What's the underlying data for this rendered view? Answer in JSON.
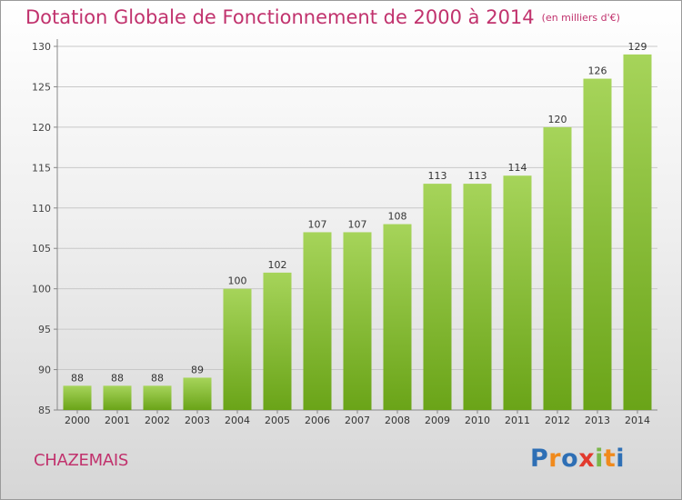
{
  "chart_data": {
    "type": "bar",
    "title": "Dotation Globale de Fonctionnement de 2000 à 2014",
    "subtitle": "(en milliers d'€)",
    "categories": [
      "2000",
      "2001",
      "2002",
      "2003",
      "2004",
      "2005",
      "2006",
      "2007",
      "2008",
      "2009",
      "2010",
      "2011",
      "2012",
      "2013",
      "2014"
    ],
    "values": [
      88,
      88,
      88,
      89,
      100,
      102,
      107,
      107,
      108,
      113,
      113,
      114,
      120,
      126,
      129
    ],
    "ylim": [
      85,
      130
    ],
    "yticks": [
      85,
      90,
      95,
      100,
      105,
      110,
      115,
      120,
      125,
      130
    ],
    "grid": true,
    "xlabel": "",
    "ylabel": ""
  },
  "footer": {
    "town": "CHAZEMAIS",
    "logo": "Proxiti"
  },
  "colors": {
    "title": "#c1326d",
    "bar_light": "#a6d45a",
    "bar_dark": "#6aa418",
    "grid": "#c8c8c8"
  }
}
